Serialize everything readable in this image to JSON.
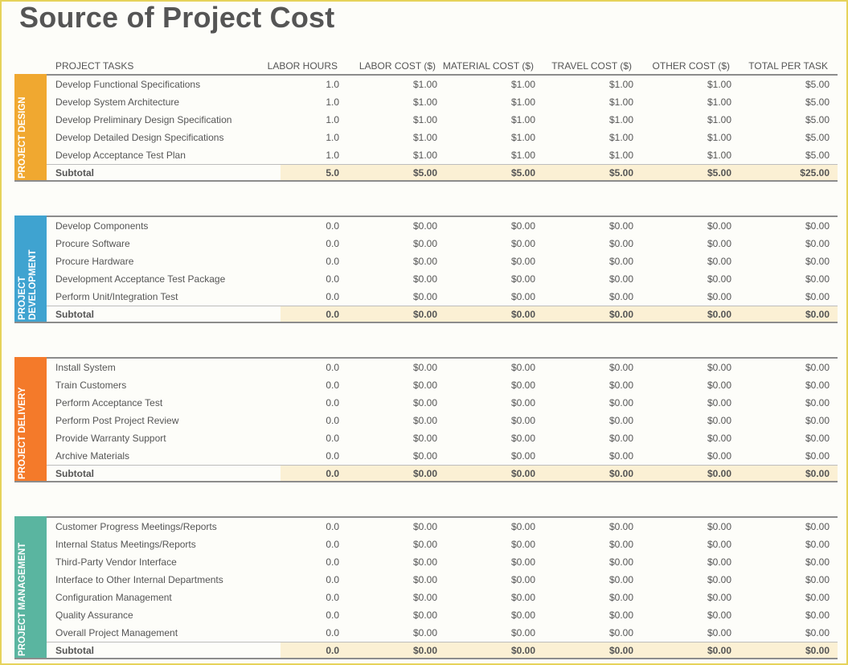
{
  "title": "Source of Project Cost",
  "headers": {
    "tasks": "PROJECT TASKS",
    "labor_hours": "LABOR HOURS",
    "labor_cost": "LABOR COST ($)",
    "material_cost": "MATERIAL COST ($)",
    "travel_cost": "TRAVEL COST ($)",
    "other_cost": "OTHER COST ($)",
    "total": "TOTAL PER TASK"
  },
  "sections": [
    {
      "label": "PROJECT DESIGN",
      "color": "#f0a830",
      "rows": [
        {
          "task": "Develop Functional Specifications",
          "hours": "1.0",
          "labor": "$1.00",
          "material": "$1.00",
          "travel": "$1.00",
          "other": "$1.00",
          "total": "$5.00"
        },
        {
          "task": "Develop System Architecture",
          "hours": "1.0",
          "labor": "$1.00",
          "material": "$1.00",
          "travel": "$1.00",
          "other": "$1.00",
          "total": "$5.00"
        },
        {
          "task": "Develop Preliminary Design Specification",
          "hours": "1.0",
          "labor": "$1.00",
          "material": "$1.00",
          "travel": "$1.00",
          "other": "$1.00",
          "total": "$5.00"
        },
        {
          "task": "Develop Detailed Design Specifications",
          "hours": "1.0",
          "labor": "$1.00",
          "material": "$1.00",
          "travel": "$1.00",
          "other": "$1.00",
          "total": "$5.00"
        },
        {
          "task": "Develop Acceptance Test Plan",
          "hours": "1.0",
          "labor": "$1.00",
          "material": "$1.00",
          "travel": "$1.00",
          "other": "$1.00",
          "total": "$5.00"
        }
      ],
      "subtotal": {
        "task": "Subtotal",
        "hours": "5.0",
        "labor": "$5.00",
        "material": "$5.00",
        "travel": "$5.00",
        "other": "$5.00",
        "total": "$25.00"
      }
    },
    {
      "label": "PROJECT DEVELOPMENT",
      "color": "#3fa3d0",
      "rows": [
        {
          "task": "Develop Components",
          "hours": "0.0",
          "labor": "$0.00",
          "material": "$0.00",
          "travel": "$0.00",
          "other": "$0.00",
          "total": "$0.00"
        },
        {
          "task": "Procure Software",
          "hours": "0.0",
          "labor": "$0.00",
          "material": "$0.00",
          "travel": "$0.00",
          "other": "$0.00",
          "total": "$0.00"
        },
        {
          "task": "Procure Hardware",
          "hours": "0.0",
          "labor": "$0.00",
          "material": "$0.00",
          "travel": "$0.00",
          "other": "$0.00",
          "total": "$0.00"
        },
        {
          "task": "Development Acceptance Test Package",
          "hours": "0.0",
          "labor": "$0.00",
          "material": "$0.00",
          "travel": "$0.00",
          "other": "$0.00",
          "total": "$0.00"
        },
        {
          "task": "Perform Unit/Integration Test",
          "hours": "0.0",
          "labor": "$0.00",
          "material": "$0.00",
          "travel": "$0.00",
          "other": "$0.00",
          "total": "$0.00"
        }
      ],
      "subtotal": {
        "task": "Subtotal",
        "hours": "0.0",
        "labor": "$0.00",
        "material": "$0.00",
        "travel": "$0.00",
        "other": "$0.00",
        "total": "$0.00"
      }
    },
    {
      "label": "PROJECT DELIVERY",
      "color": "#f47a2a",
      "rows": [
        {
          "task": "Install System",
          "hours": "0.0",
          "labor": "$0.00",
          "material": "$0.00",
          "travel": "$0.00",
          "other": "$0.00",
          "total": "$0.00"
        },
        {
          "task": "Train Customers",
          "hours": "0.0",
          "labor": "$0.00",
          "material": "$0.00",
          "travel": "$0.00",
          "other": "$0.00",
          "total": "$0.00"
        },
        {
          "task": "Perform Acceptance Test",
          "hours": "0.0",
          "labor": "$0.00",
          "material": "$0.00",
          "travel": "$0.00",
          "other": "$0.00",
          "total": "$0.00"
        },
        {
          "task": "Perform Post Project Review",
          "hours": "0.0",
          "labor": "$0.00",
          "material": "$0.00",
          "travel": "$0.00",
          "other": "$0.00",
          "total": "$0.00"
        },
        {
          "task": "Provide Warranty Support",
          "hours": "0.0",
          "labor": "$0.00",
          "material": "$0.00",
          "travel": "$0.00",
          "other": "$0.00",
          "total": "$0.00"
        },
        {
          "task": "Archive Materials",
          "hours": "0.0",
          "labor": "$0.00",
          "material": "$0.00",
          "travel": "$0.00",
          "other": "$0.00",
          "total": "$0.00"
        }
      ],
      "subtotal": {
        "task": "Subtotal",
        "hours": "0.0",
        "labor": "$0.00",
        "material": "$0.00",
        "travel": "$0.00",
        "other": "$0.00",
        "total": "$0.00"
      }
    },
    {
      "label": "PROJECT MANAGEMENT",
      "color": "#5ab5a0",
      "rows": [
        {
          "task": "Customer Progress Meetings/Reports",
          "hours": "0.0",
          "labor": "$0.00",
          "material": "$0.00",
          "travel": "$0.00",
          "other": "$0.00",
          "total": "$0.00"
        },
        {
          "task": "Internal Status Meetings/Reports",
          "hours": "0.0",
          "labor": "$0.00",
          "material": "$0.00",
          "travel": "$0.00",
          "other": "$0.00",
          "total": "$0.00"
        },
        {
          "task": "Third-Party Vendor Interface",
          "hours": "0.0",
          "labor": "$0.00",
          "material": "$0.00",
          "travel": "$0.00",
          "other": "$0.00",
          "total": "$0.00"
        },
        {
          "task": "Interface to Other Internal Departments",
          "hours": "0.0",
          "labor": "$0.00",
          "material": "$0.00",
          "travel": "$0.00",
          "other": "$0.00",
          "total": "$0.00"
        },
        {
          "task": "Configuration Management",
          "hours": "0.0",
          "labor": "$0.00",
          "material": "$0.00",
          "travel": "$0.00",
          "other": "$0.00",
          "total": "$0.00"
        },
        {
          "task": "Quality Assurance",
          "hours": "0.0",
          "labor": "$0.00",
          "material": "$0.00",
          "travel": "$0.00",
          "other": "$0.00",
          "total": "$0.00"
        },
        {
          "task": "Overall Project Management",
          "hours": "0.0",
          "labor": "$0.00",
          "material": "$0.00",
          "travel": "$0.00",
          "other": "$0.00",
          "total": "$0.00"
        }
      ],
      "subtotal": {
        "task": "Subtotal",
        "hours": "0.0",
        "labor": "$0.00",
        "material": "$0.00",
        "travel": "$0.00",
        "other": "$0.00",
        "total": "$0.00"
      }
    }
  ]
}
